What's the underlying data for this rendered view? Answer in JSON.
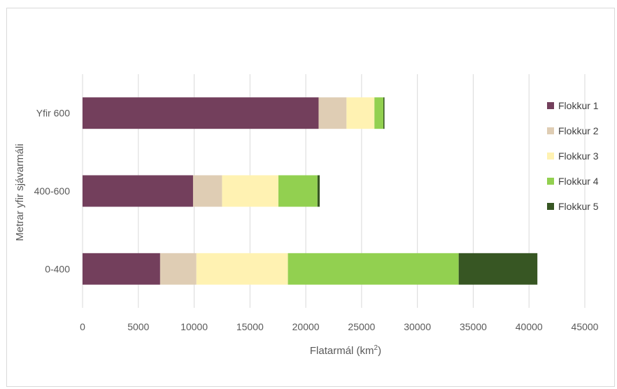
{
  "chart_data": {
    "type": "bar",
    "orientation": "horizontal",
    "stacked": true,
    "categories": [
      "0-400",
      "400-600",
      "Yfir 600"
    ],
    "series": [
      {
        "name": "Flokkur 1",
        "color": "#733F5C",
        "values": [
          6950,
          9900,
          21150
        ]
      },
      {
        "name": "Flokkur 2",
        "color": "#DFCDB4",
        "values": [
          3250,
          2600,
          2500
        ]
      },
      {
        "name": "Flokkur 3",
        "color": "#FFF2B2",
        "values": [
          8200,
          5050,
          2500
        ]
      },
      {
        "name": "Flokkur 4",
        "color": "#92D050",
        "values": [
          15300,
          3500,
          800
        ]
      },
      {
        "name": "Flokkur 5",
        "color": "#375623",
        "values": [
          7050,
          200,
          100
        ]
      }
    ],
    "xlabel": "Flatarmál (km",
    "xlabel_sup": "2",
    "xlabel_end": ")",
    "ylabel": "Metrar yfir sjávarmáli",
    "xlim": [
      0,
      45000
    ],
    "xticks": [
      "0",
      "5000",
      "10000",
      "15000",
      "20000",
      "25000",
      "30000",
      "35000",
      "40000",
      "45000"
    ],
    "grid": "vertical",
    "legend_position": "right"
  }
}
